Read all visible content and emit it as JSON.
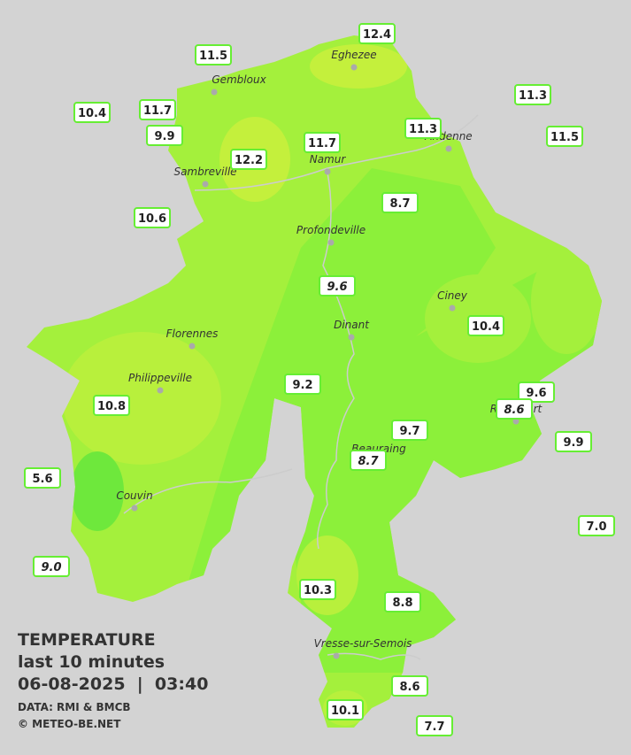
{
  "legend": {
    "title": "TEMPERATURE",
    "subtitle": "last 10 minutes",
    "datetime": "06-08-2025  |  03:40",
    "source": "DATA: RMI & BMCB",
    "copyright": "© METEO-BE.NET"
  },
  "cities": [
    "Eghezee",
    "Gembloux",
    "Andenne",
    "Namur",
    "Sambreville",
    "Profondeville",
    "Ciney",
    "Dinant",
    "Florennes",
    "Philippeville",
    "Rochefort",
    "Beauraing",
    "Couvin",
    "Vresse-sur-Semois"
  ],
  "stations": [
    "12.4",
    "11.5",
    "11.3",
    "10.4",
    "11.7",
    "9.9",
    "11.3",
    "11.5",
    "11.7",
    "12.2",
    "10.6",
    "8.7",
    "9.6",
    "10.4",
    "9.2",
    "9.6",
    "8.6",
    "10.8",
    "9.7",
    "9.9",
    "8.7",
    "5.6",
    "7.0",
    "9.0",
    "10.3",
    "8.8",
    "8.6",
    "10.1",
    "7.7"
  ]
}
